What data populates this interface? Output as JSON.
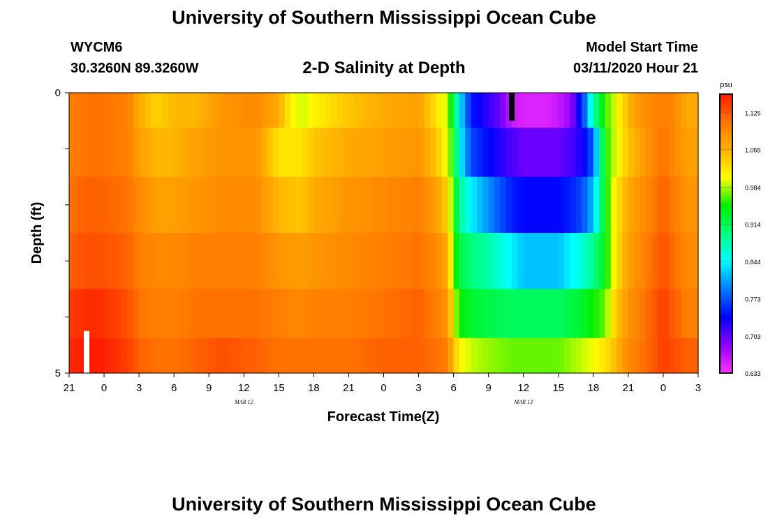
{
  "header": {
    "title": "University of Southern Mississippi Ocean Cube",
    "station": "WYCM6",
    "coordinates": "30.3260N 89.3260W",
    "subtitle": "2-D Salinity at Depth",
    "model_start_label": "Model Start Time",
    "model_start_value": "03/11/2020 Hour 21"
  },
  "footer": {
    "title": "University of Southern Mississippi Ocean Cube"
  },
  "chart_data": {
    "type": "heatmap",
    "title": "2-D Salinity at Depth",
    "xlabel": "Forecast Time(Z)",
    "ylabel": "Depth (ft)",
    "x_tick_labels": [
      "21",
      "0",
      "3",
      "6",
      "9",
      "12",
      "15",
      "18",
      "21",
      "0",
      "3",
      "6",
      "9",
      "12",
      "15",
      "18",
      "21",
      "0",
      "3"
    ],
    "x_hours_from_start": [
      0,
      3,
      6,
      9,
      12,
      15,
      18,
      21,
      24,
      27,
      30,
      33,
      36,
      39,
      42,
      45,
      48,
      51,
      54
    ],
    "date_labels": [
      {
        "label": "MAR 12",
        "hour": 15
      },
      {
        "label": "MAR 13",
        "hour": 39
      }
    ],
    "xlim": [
      0,
      54
    ],
    "ylim": [
      0,
      5
    ],
    "y_tick_labels": [
      "0",
      "5"
    ],
    "depth_levels": [
      0.25,
      1.0,
      2.0,
      3.0,
      4.0,
      4.75
    ],
    "colorbar": {
      "unit": "psu",
      "ticks": [
        0.633,
        0.703,
        0.773,
        0.844,
        0.914,
        0.984,
        1.055,
        1.125
      ],
      "min": 0.633,
      "max": 1.16,
      "colors": [
        "#ff33ff",
        "#9000ff",
        "#0000ff",
        "#0078ff",
        "#00ffff",
        "#00ff80",
        "#00ee00",
        "#ffff00",
        "#ffb000",
        "#ff7700",
        "#ff1a00"
      ]
    },
    "profiles": [
      {
        "hours": [
          0,
          1.5,
          2.5,
          5,
          6,
          7.5,
          9,
          11,
          13,
          16,
          18,
          19,
          20,
          21,
          24,
          27,
          30,
          31.5,
          32.5,
          33,
          33.5,
          34.5,
          36,
          37,
          38,
          39,
          41,
          42,
          43,
          44,
          45,
          46,
          47,
          48,
          49,
          50,
          51,
          52,
          53,
          54
        ],
        "values": [
          1.1,
          1.11,
          1.11,
          1.1,
          1.06,
          1.03,
          1.05,
          1.05,
          1.08,
          1.09,
          1.06,
          1.01,
          0.99,
          1.01,
          1.04,
          1.06,
          1.07,
          1.02,
          0.99,
          0.92,
          0.84,
          0.75,
          0.72,
          0.7,
          0.66,
          0.65,
          0.65,
          0.66,
          0.68,
          0.75,
          0.88,
          0.96,
          1.0,
          1.05,
          1.08,
          1.09,
          1.1,
          1.09,
          1.06,
          1.06
        ]
      },
      {
        "hours": [
          0,
          1.5,
          2.5,
          5,
          6,
          7.5,
          9,
          11,
          13,
          16,
          18,
          20,
          21,
          24,
          27,
          30,
          31.5,
          32.5,
          33,
          33.5,
          34.5,
          36,
          38,
          39,
          41,
          42,
          43,
          44,
          45,
          46,
          47,
          48,
          50,
          51,
          52,
          53,
          54
        ],
        "values": [
          1.1,
          1.11,
          1.11,
          1.1,
          1.07,
          1.05,
          1.05,
          1.07,
          1.08,
          1.08,
          1.02,
          1.02,
          1.04,
          1.06,
          1.07,
          1.08,
          1.04,
          1.0,
          0.94,
          0.85,
          0.77,
          0.74,
          0.71,
          0.7,
          0.7,
          0.7,
          0.71,
          0.73,
          0.78,
          0.95,
          1.0,
          1.04,
          1.09,
          1.11,
          1.09,
          1.07,
          1.07
        ]
      },
      {
        "hours": [
          0,
          1.5,
          2.5,
          5,
          6,
          7.5,
          9,
          11,
          13,
          16,
          18,
          20,
          21,
          24,
          27,
          30,
          31.5,
          32.5,
          33,
          33.5,
          34.5,
          36,
          38,
          39,
          41,
          42,
          43,
          44,
          45,
          46,
          47,
          48,
          50,
          51,
          52,
          53,
          54
        ],
        "values": [
          1.11,
          1.12,
          1.12,
          1.11,
          1.09,
          1.07,
          1.07,
          1.08,
          1.09,
          1.09,
          1.05,
          1.04,
          1.06,
          1.08,
          1.09,
          1.1,
          1.07,
          1.03,
          0.95,
          0.89,
          0.84,
          0.8,
          0.75,
          0.74,
          0.74,
          0.74,
          0.75,
          0.77,
          0.82,
          0.94,
          1.02,
          1.06,
          1.1,
          1.12,
          1.1,
          1.08,
          1.08
        ]
      },
      {
        "hours": [
          0,
          1.5,
          2.5,
          5,
          6,
          7.5,
          9,
          11,
          13,
          16,
          18,
          20,
          21,
          24,
          27,
          30,
          31.5,
          32.5,
          33,
          33.5,
          34.5,
          36,
          38,
          39,
          41,
          42,
          43,
          44,
          45,
          46,
          47,
          48,
          50,
          51,
          52,
          53,
          54
        ],
        "values": [
          1.12,
          1.13,
          1.13,
          1.12,
          1.1,
          1.09,
          1.09,
          1.1,
          1.1,
          1.1,
          1.08,
          1.07,
          1.08,
          1.09,
          1.1,
          1.11,
          1.09,
          1.06,
          0.97,
          0.92,
          0.9,
          0.88,
          0.84,
          0.82,
          0.82,
          0.82,
          0.84,
          0.86,
          0.89,
          0.94,
          1.02,
          1.07,
          1.11,
          1.13,
          1.11,
          1.09,
          1.09
        ]
      },
      {
        "hours": [
          0,
          1.5,
          2.5,
          5,
          6,
          7.5,
          9,
          11,
          13,
          16,
          18,
          20,
          21,
          24,
          27,
          30,
          31.5,
          32.5,
          33,
          33.5,
          34.5,
          36,
          38,
          39,
          41,
          42,
          43,
          44,
          45,
          46,
          47,
          48,
          50,
          51,
          52,
          53,
          54
        ],
        "values": [
          1.14,
          1.15,
          1.15,
          1.13,
          1.11,
          1.1,
          1.1,
          1.11,
          1.11,
          1.11,
          1.1,
          1.09,
          1.1,
          1.1,
          1.11,
          1.12,
          1.1,
          1.08,
          1.0,
          0.95,
          0.93,
          0.92,
          0.91,
          0.91,
          0.91,
          0.91,
          0.92,
          0.93,
          0.95,
          0.97,
          1.04,
          1.08,
          1.12,
          1.14,
          1.12,
          1.1,
          1.1
        ]
      },
      {
        "hours": [
          0,
          1.5,
          2.5,
          5,
          6,
          7.5,
          9,
          11,
          13,
          16,
          18,
          20,
          21,
          24,
          27,
          30,
          31.5,
          32.5,
          33,
          33.5,
          34.5,
          36,
          38,
          39,
          41,
          42,
          43,
          44,
          45,
          46,
          47,
          48,
          50,
          51,
          52,
          53,
          54
        ],
        "values": [
          1.15,
          1.16,
          1.16,
          1.14,
          1.12,
          1.11,
          1.11,
          1.12,
          1.13,
          1.12,
          1.11,
          1.11,
          1.11,
          1.11,
          1.12,
          1.12,
          1.11,
          1.1,
          1.04,
          1.01,
          0.99,
          0.98,
          0.97,
          0.97,
          0.97,
          0.97,
          0.98,
          0.99,
          1.0,
          1.02,
          1.05,
          1.09,
          1.12,
          1.14,
          1.13,
          1.12,
          1.12
        ]
      }
    ],
    "markers": [
      {
        "name": "start-marker",
        "hour": 1.5,
        "depth_from": 4.25,
        "depth_to": 5.0,
        "color": "#ffffff"
      },
      {
        "name": "current-time-marker",
        "hour": 38,
        "depth_from": 0.0,
        "depth_to": 0.5,
        "color": "#000000"
      }
    ]
  }
}
